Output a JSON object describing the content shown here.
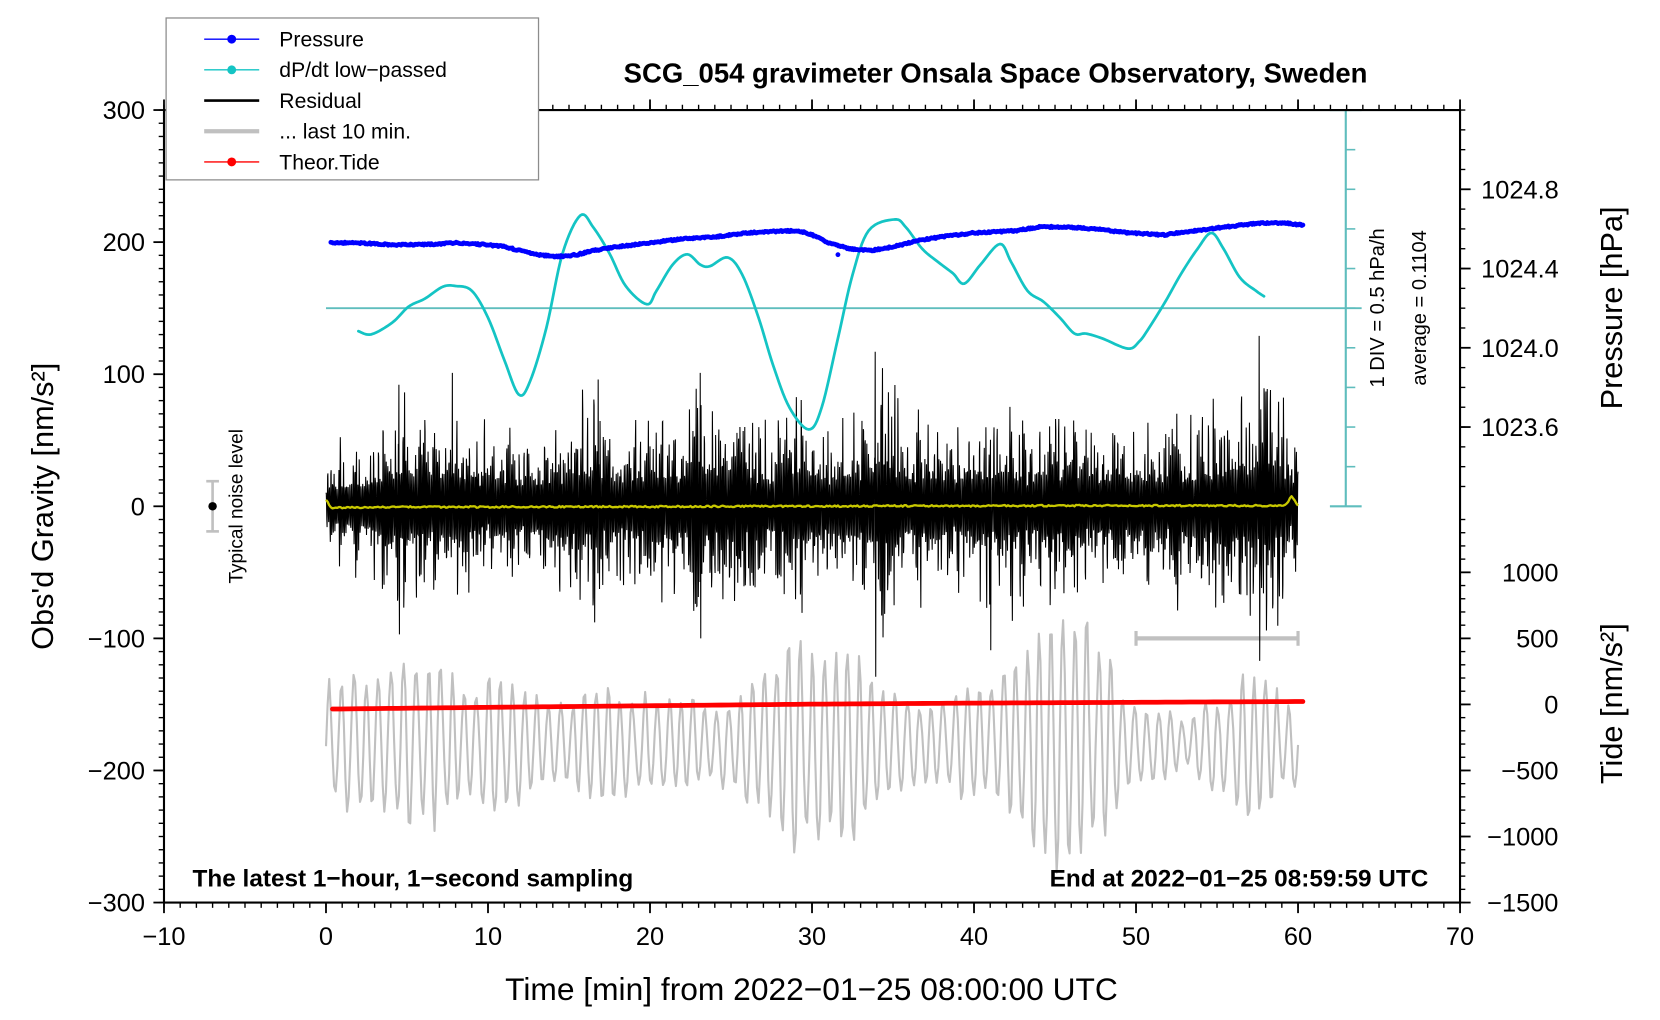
{
  "chart_data": {
    "type": "line",
    "title": "SCG_054 gravimeter Onsala Space Observatory, Sweden",
    "xlabel": "Time [min] from 2022−01−25 08:00:00 UTC",
    "ylabel": "Obs'd Gravity [nm/s²]",
    "xlim": [
      -10,
      70
    ],
    "ylim": [
      -300,
      300
    ],
    "grid": false,
    "x_minor_step": 1,
    "y_minor_step": 10,
    "x_ticks": [
      {
        "value": -10,
        "label": "−10"
      },
      {
        "value": 0,
        "label": "0"
      },
      {
        "value": 10,
        "label": "10"
      },
      {
        "value": 20,
        "label": "20"
      },
      {
        "value": 30,
        "label": "30"
      },
      {
        "value": 40,
        "label": "40"
      },
      {
        "value": 50,
        "label": "50"
      },
      {
        "value": 60,
        "label": "60"
      },
      {
        "value": 70,
        "label": "70"
      }
    ],
    "y_ticks": [
      {
        "value": -300,
        "label": "−300"
      },
      {
        "value": -200,
        "label": "−200"
      },
      {
        "value": -100,
        "label": "−100"
      },
      {
        "value": 0,
        "label": "0"
      },
      {
        "value": 100,
        "label": "100"
      },
      {
        "value": 200,
        "label": "200"
      },
      {
        "value": 300,
        "label": "300"
      }
    ],
    "pressure_axis": {
      "label": "Pressure [hPa]",
      "lim": [
        1023.2,
        1025.2
      ],
      "minor_step": 0.1,
      "ticks": [
        {
          "value": 1023.6,
          "label": "1023.6"
        },
        {
          "value": 1024.0,
          "label": "1024.0"
        },
        {
          "value": 1024.4,
          "label": "1024.4"
        },
        {
          "value": 1024.8,
          "label": "1024.8"
        }
      ]
    },
    "tide_axis": {
      "label": "Tide [nm/s²]",
      "lim": [
        -1500,
        1500
      ],
      "minor_step": 100,
      "ticks": [
        {
          "value": -1500,
          "label": "−1500"
        },
        {
          "value": -1000,
          "label": "−1000"
        },
        {
          "value": -500,
          "label": "−500"
        },
        {
          "value": 0,
          "label": "0"
        },
        {
          "value": 500,
          "label": "500"
        },
        {
          "value": 1000,
          "label": "1000"
        }
      ]
    },
    "dpdt_axis": {
      "division_label": "1 DIV = 0.5 hPa/h",
      "division": 0.5,
      "divisions": 10,
      "unit": "hPa/h",
      "average_label": "average = 0.1104",
      "average": 0.1104,
      "color": "#5fbdbd"
    },
    "legend": {
      "placement": "top-left",
      "entries": [
        {
          "label": "Pressure",
          "color": "#0000ff",
          "marker": "dot",
          "line_style": "thin"
        },
        {
          "label": "dP/dt low−passed",
          "color": "#14c4c4",
          "marker": "dot",
          "line_style": "thin"
        },
        {
          "label": "Residual",
          "color": "#000000",
          "marker": "none",
          "line_style": "medium"
        },
        {
          "label": "... last 10 min.",
          "color": "#c0c0c0",
          "marker": "none",
          "line_style": "thick"
        },
        {
          "label": "Theor.Tide",
          "color": "#ff0000",
          "marker": "dot",
          "line_style": "thin"
        }
      ]
    },
    "series": {
      "pressure": {
        "name": "Pressure",
        "axis": "pressure",
        "color": "#0000ff",
        "points": [
          [
            0.3,
            1024.53
          ],
          [
            2,
            1024.53
          ],
          [
            4,
            1024.52
          ],
          [
            6,
            1024.52
          ],
          [
            8,
            1024.53
          ],
          [
            10,
            1024.52
          ],
          [
            11,
            1024.51
          ],
          [
            12,
            1024.49
          ],
          [
            13,
            1024.47
          ],
          [
            14.3,
            1024.46
          ],
          [
            15.5,
            1024.47
          ],
          [
            16.5,
            1024.49
          ],
          [
            18,
            1024.51
          ],
          [
            20,
            1024.53
          ],
          [
            22,
            1024.55
          ],
          [
            24,
            1024.56
          ],
          [
            26,
            1024.58
          ],
          [
            28.1,
            1024.59
          ],
          [
            29.2,
            1024.59
          ],
          [
            30,
            1024.57
          ],
          [
            31,
            1024.53
          ],
          [
            32.3,
            1024.5
          ],
          [
            33.6,
            1024.49
          ],
          [
            35,
            1024.51
          ],
          [
            36.5,
            1024.54
          ],
          [
            38,
            1024.56
          ],
          [
            40,
            1024.58
          ],
          [
            42.5,
            1024.59
          ],
          [
            44,
            1024.61
          ],
          [
            45.6,
            1024.61
          ],
          [
            47.5,
            1024.6
          ],
          [
            49.5,
            1024.58
          ],
          [
            51.8,
            1024.57
          ],
          [
            53.5,
            1024.59
          ],
          [
            55.5,
            1024.61
          ],
          [
            57.7,
            1024.63
          ],
          [
            59,
            1024.63
          ],
          [
            60.3,
            1024.62
          ]
        ],
        "outliers": [
          [
            31.6,
            1024.47
          ]
        ]
      },
      "dpdt_lowpassed": {
        "name": "dP/dt low−passed",
        "axis": "dpdt",
        "color": "#14c4c4",
        "points": [
          [
            2.0,
            -0.18
          ],
          [
            2.8,
            -0.22
          ],
          [
            4.1,
            -0.07
          ],
          [
            5.1,
            0.13
          ],
          [
            6.1,
            0.23
          ],
          [
            7.2,
            0.38
          ],
          [
            8.0,
            0.39
          ],
          [
            9.0,
            0.33
          ],
          [
            10.0,
            -0.01
          ],
          [
            11.0,
            -0.54
          ],
          [
            11.9,
            -0.98
          ],
          [
            12.6,
            -0.81
          ],
          [
            13.6,
            -0.14
          ],
          [
            14.6,
            0.8
          ],
          [
            15.7,
            1.28
          ],
          [
            16.5,
            1.13
          ],
          [
            17.5,
            0.8
          ],
          [
            18.5,
            0.39
          ],
          [
            19.8,
            0.16
          ],
          [
            20.4,
            0.33
          ],
          [
            21.4,
            0.66
          ],
          [
            22.3,
            0.79
          ],
          [
            23.1,
            0.66
          ],
          [
            23.7,
            0.64
          ],
          [
            24.8,
            0.75
          ],
          [
            25.7,
            0.53
          ],
          [
            26.7,
            -0.01
          ],
          [
            27.6,
            -0.61
          ],
          [
            28.6,
            -1.14
          ],
          [
            29.8,
            -1.42
          ],
          [
            30.6,
            -1.14
          ],
          [
            31.6,
            -0.27
          ],
          [
            32.5,
            0.53
          ],
          [
            33.5,
            1.09
          ],
          [
            35.1,
            1.23
          ],
          [
            35.8,
            1.13
          ],
          [
            36.8,
            0.86
          ],
          [
            37.8,
            0.69
          ],
          [
            38.7,
            0.55
          ],
          [
            39.4,
            0.42
          ],
          [
            40.4,
            0.66
          ],
          [
            41.6,
            0.92
          ],
          [
            42.3,
            0.69
          ],
          [
            43.3,
            0.33
          ],
          [
            44.3,
            0.19
          ],
          [
            45.3,
            -0.01
          ],
          [
            46.2,
            -0.21
          ],
          [
            46.9,
            -0.21
          ],
          [
            47.9,
            -0.27
          ],
          [
            49.5,
            -0.4
          ],
          [
            50.2,
            -0.31
          ],
          [
            50.8,
            -0.14
          ],
          [
            51.8,
            0.19
          ],
          [
            52.8,
            0.55
          ],
          [
            53.8,
            0.86
          ],
          [
            54.65,
            1.06
          ],
          [
            55.4,
            0.86
          ],
          [
            56.4,
            0.5
          ],
          [
            57.4,
            0.33
          ],
          [
            57.9,
            0.26
          ]
        ]
      },
      "residual": {
        "name": "Residual",
        "axis": "gravity",
        "color": "#000000",
        "sampling": "1 s",
        "t_range": [
          0,
          60
        ],
        "envelope_per_min": [
          45,
          55,
          62,
          70,
          93,
          93,
          80,
          90,
          101,
          75,
          70,
          80,
          65,
          75,
          80,
          80,
          96,
          85,
          70,
          70,
          75,
          85,
          70,
          101,
          85,
          80,
          70,
          70,
          78,
          95,
          80,
          65,
          95,
          80,
          118,
          103,
          80,
          80,
          88,
          72,
          95,
          92,
          100,
          80,
          72,
          95,
          80,
          65,
          80,
          72,
          80,
          72,
          80,
          88,
          84,
          88,
          100,
          88,
          110,
          95,
          60
        ],
        "spikes": [
          {
            "t": 4.5,
            "max": 92,
            "min": -97
          },
          {
            "t": 7.8,
            "max": 101
          },
          {
            "t": 16.8,
            "max": 96
          },
          {
            "t": 23.1,
            "max": 101,
            "min": -100
          },
          {
            "t": 33.9,
            "max": 117,
            "min": -129
          },
          {
            "t": 41.0,
            "min": -109
          },
          {
            "t": 57.6,
            "max": 129,
            "min": -117
          }
        ]
      },
      "residual_lowpass": {
        "axis": "gravity",
        "color": "#c8c800",
        "points": [
          [
            0,
            5
          ],
          [
            0.3,
            -1
          ],
          [
            5,
            -0.5
          ],
          [
            10,
            -0.5
          ],
          [
            15,
            -0.3
          ],
          [
            20,
            -0.3
          ],
          [
            25,
            0
          ],
          [
            30,
            0
          ],
          [
            35,
            0.3
          ],
          [
            40,
            0.3
          ],
          [
            45,
            0.5
          ],
          [
            50,
            0.5
          ],
          [
            55,
            0.5
          ],
          [
            59.2,
            0.5
          ],
          [
            59.6,
            7.6
          ],
          [
            60,
            1
          ]
        ]
      },
      "last_10_min": {
        "name": "... last 10 min.",
        "axis": "gravity",
        "color": "#c0c0c0",
        "t_range": [
          0,
          60
        ],
        "center": -180,
        "envelope_per_2min": [
          52,
          64,
          72,
          70,
          52,
          60,
          44,
          36,
          52,
          40,
          48,
          36,
          38,
          64,
          88,
          96,
          72,
          44,
          32,
          44,
          52,
          72,
          122,
          104,
          54,
          32,
          22,
          40,
          60,
          40
        ]
      },
      "theoretical_tide": {
        "name": "Theor.Tide",
        "axis": "tide",
        "color": "#ff0000",
        "points": [
          [
            0.4,
            -35
          ],
          [
            10,
            -22
          ],
          [
            20,
            -10
          ],
          [
            30,
            2
          ],
          [
            40,
            10
          ],
          [
            50,
            16
          ],
          [
            60.3,
            22
          ]
        ]
      }
    },
    "annotations": {
      "noise_level": {
        "label": "Typical noise level",
        "t": -7,
        "value": 0,
        "error": 19
      },
      "last_10_min_bar": {
        "t_start": 50,
        "t_end": 60,
        "value": -100
      },
      "footer_left": "The latest 1−hour, 1−second sampling",
      "footer_right": "End at 2022−01−25 08:59:59 UTC"
    }
  }
}
